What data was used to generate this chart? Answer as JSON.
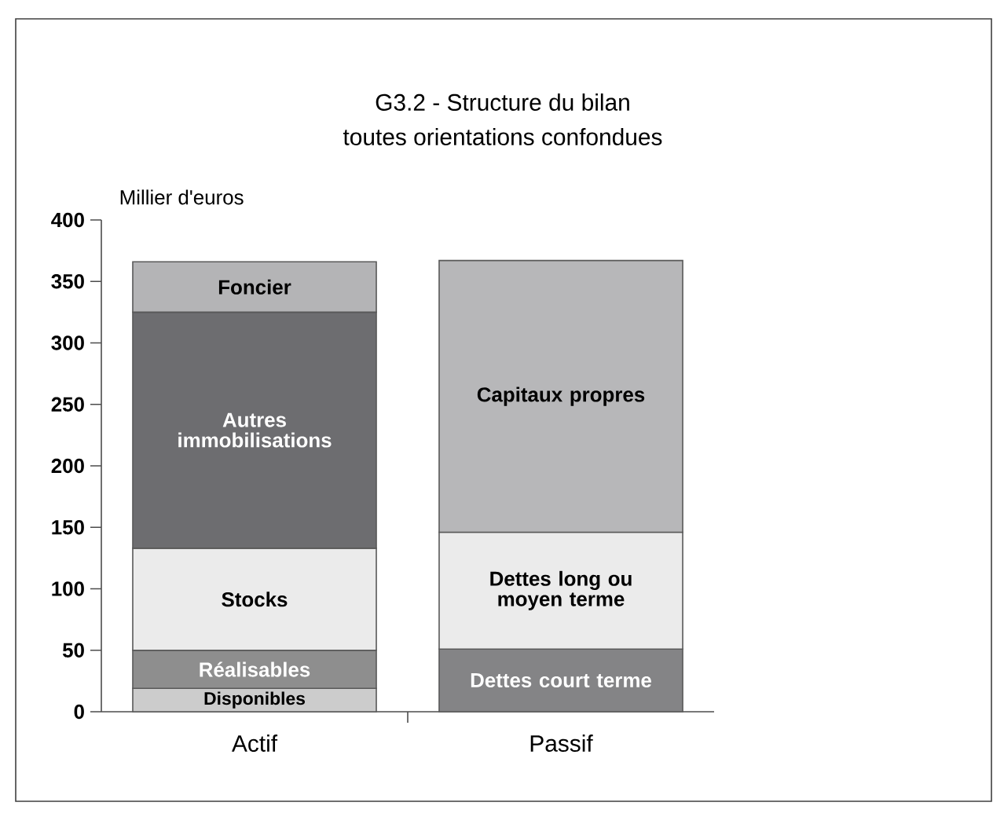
{
  "chart_data": {
    "type": "bar",
    "stacked": true,
    "title": "G3.2 - Structure du bilan",
    "subtitle": "toutes orientations confondues",
    "ylabel": "Millier d'euros",
    "categories": [
      "Actif",
      "Passif"
    ],
    "ylim": [
      0,
      400
    ],
    "yticks": [
      0,
      50,
      100,
      150,
      200,
      250,
      300,
      350,
      400
    ],
    "series": [
      {
        "name": "Disponibles",
        "color": "#cccccc",
        "values": [
          19,
          null
        ]
      },
      {
        "name": "Réalisables",
        "color": "#8e8e8e",
        "values": [
          31,
          null
        ]
      },
      {
        "name": "Stocks",
        "color": "#ebebeb",
        "values": [
          83,
          null
        ]
      },
      {
        "name": "Autres immobilisations",
        "color": "#6d6d70",
        "values": [
          192,
          null
        ]
      },
      {
        "name": "Foncier",
        "color": "#b4b4b6",
        "values": [
          41,
          null
        ]
      },
      {
        "name": "Dettes court terme",
        "color": "#848486",
        "values": [
          null,
          51
        ]
      },
      {
        "name": "Dettes long ou moyen terme",
        "color": "#ebebeb",
        "values": [
          null,
          95
        ]
      },
      {
        "name": "Capitaux propres",
        "color": "#b7b7b9",
        "values": [
          null,
          221
        ]
      }
    ]
  }
}
